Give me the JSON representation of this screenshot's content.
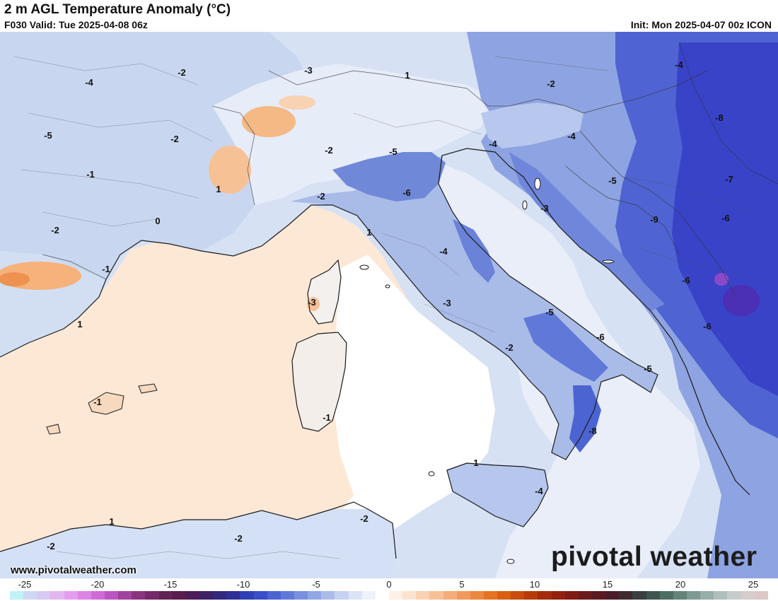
{
  "header": {
    "title": "2 m AGL Temperature Anomaly (°C)",
    "valid": "F030 Valid: Tue 2025-04-08 06z",
    "init": "Init: Mon 2025-04-07 00z ICON"
  },
  "footer": {
    "url": "www.pivotalweather.com",
    "brand": "pivotal weather"
  },
  "colors": {
    "land_cold_light": "#c7d6ef",
    "land_cold_mid": "#9db2e2",
    "land_cold_deep": "#4f64d2",
    "land_cold_deepest": "#3943c8",
    "land_neutral": "#f4f6fc",
    "sea_warm": "#fde8d6",
    "warm_mid": "#f6b27a",
    "coast": "#1a1a1a"
  },
  "contour_labels": [
    {
      "text": "-3"
    },
    {
      "text": "-4"
    },
    {
      "text": "-2"
    },
    {
      "text": "1"
    },
    {
      "text": "-2"
    },
    {
      "text": "-4"
    },
    {
      "text": "-5"
    },
    {
      "text": "-2"
    },
    {
      "text": "-2"
    },
    {
      "text": "-5"
    },
    {
      "text": "-4"
    },
    {
      "text": "-4"
    },
    {
      "text": "-8"
    },
    {
      "text": "-1"
    },
    {
      "text": "1"
    },
    {
      "text": "-6"
    },
    {
      "text": "-5"
    },
    {
      "text": "-7"
    },
    {
      "text": "-2"
    },
    {
      "text": "-3"
    },
    {
      "text": "0"
    },
    {
      "text": "-2"
    },
    {
      "text": "1"
    },
    {
      "text": "-9"
    },
    {
      "text": "-6"
    },
    {
      "text": "-1"
    },
    {
      "text": "-4"
    },
    {
      "text": "-3"
    },
    {
      "text": "-6"
    },
    {
      "text": "-3"
    },
    {
      "text": "-5"
    },
    {
      "text": "1"
    },
    {
      "text": "-6"
    },
    {
      "text": "-6"
    },
    {
      "text": "-2"
    },
    {
      "text": "-5"
    },
    {
      "text": "-1"
    },
    {
      "text": "-1"
    },
    {
      "text": "-8"
    },
    {
      "text": "1"
    },
    {
      "text": "-4"
    },
    {
      "text": "1"
    },
    {
      "text": "-2"
    },
    {
      "text": "-2"
    },
    {
      "text": "-2"
    }
  ],
  "colorbar": {
    "ticks": [
      "-25",
      "-20",
      "-15",
      "-10",
      "-5",
      "0",
      "5",
      "10",
      "15",
      "20",
      "25"
    ],
    "colors": [
      "#bff3f7",
      "#cdd9f3",
      "#d8c9f3",
      "#e2b6f1",
      "#e59df0",
      "#dd83e6",
      "#cf6bd6",
      "#bb55c3",
      "#a2429f",
      "#8a3480",
      "#742a68",
      "#632253",
      "#5a1c4d",
      "#4c1d58",
      "#3f2168",
      "#33287d",
      "#2f2f95",
      "#3040b4",
      "#3a4ec8",
      "#4c64d2",
      "#6079d9",
      "#7890de",
      "#92a6e3",
      "#abbce9",
      "#c5d2f0",
      "#dbe4f6",
      "#eef2fb",
      "#ffffff",
      "#fdf0e6",
      "#fbe3cf",
      "#f9d2b2",
      "#f7c196",
      "#f4ad78",
      "#f09a5a",
      "#ec873e",
      "#e57324",
      "#d95f13",
      "#c94c0d",
      "#b73a0a",
      "#a52a0a",
      "#93200e",
      "#7f1b14",
      "#6b1a1c",
      "#5a1a22",
      "#4a1c28",
      "#3f2a30",
      "#3b3f3f",
      "#3f5650",
      "#4d6d63",
      "#648479",
      "#7c9a91",
      "#97aea9",
      "#b0bfbd",
      "#c6cccc",
      "#d6cccc",
      "#ddc7c7"
    ]
  }
}
